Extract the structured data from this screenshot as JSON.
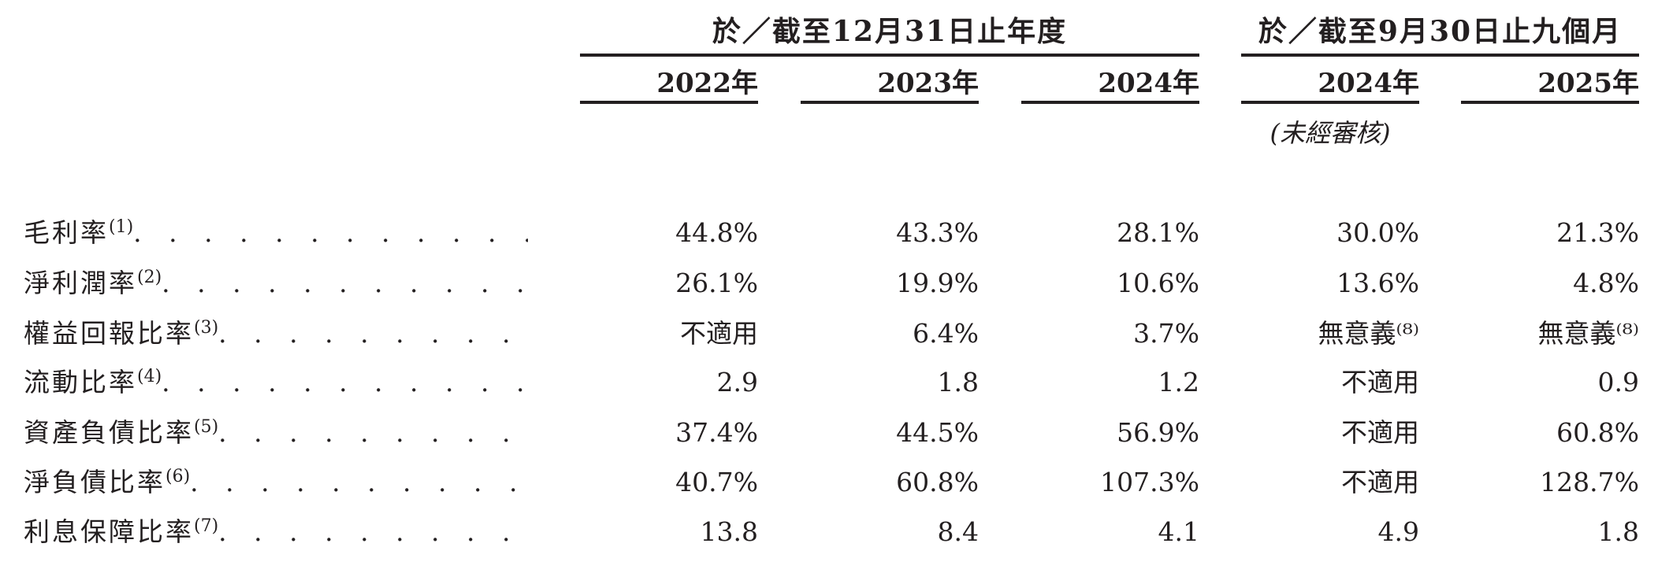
{
  "header": {
    "group_annual": "於／截至12月31日止年度",
    "group_nine_months": "於／截至9月30日止九個月",
    "years": [
      "2022年",
      "2023年",
      "2024年",
      "2024年",
      "2025年"
    ],
    "unaudited_note": "(未經審核)"
  },
  "rows": [
    {
      "label": "毛利率",
      "note": "(1)",
      "values": [
        "44.8%",
        "43.3%",
        "28.1%",
        "30.0%",
        "21.3%"
      ]
    },
    {
      "label": "淨利潤率",
      "note": "(2)",
      "values": [
        "26.1%",
        "19.9%",
        "10.6%",
        "13.6%",
        "4.8%"
      ]
    },
    {
      "label": "權益回報比率",
      "note": "(3)",
      "values": [
        "不適用",
        "6.4%",
        "3.7%",
        "無意義⁽⁸⁾",
        "無意義⁽⁸⁾"
      ]
    },
    {
      "label": "流動比率",
      "note": "(4)",
      "values": [
        "2.9",
        "1.8",
        "1.2",
        "不適用",
        "0.9"
      ]
    },
    {
      "label": "資產負債比率",
      "note": "(5)",
      "values": [
        "37.4%",
        "44.5%",
        "56.9%",
        "不適用",
        "60.8%"
      ]
    },
    {
      "label": "淨負債比率",
      "note": "(6)",
      "values": [
        "40.7%",
        "60.8%",
        "107.3%",
        "不適用",
        "128.7%"
      ]
    },
    {
      "label": "利息保障比率",
      "note": "(7)",
      "values": [
        "13.8",
        "8.4",
        "4.1",
        "4.9",
        "1.8"
      ]
    }
  ],
  "leader_dots": ". . . . . . . . . . . . . . . . . . . . . . . . . . . . . . . . . ."
}
